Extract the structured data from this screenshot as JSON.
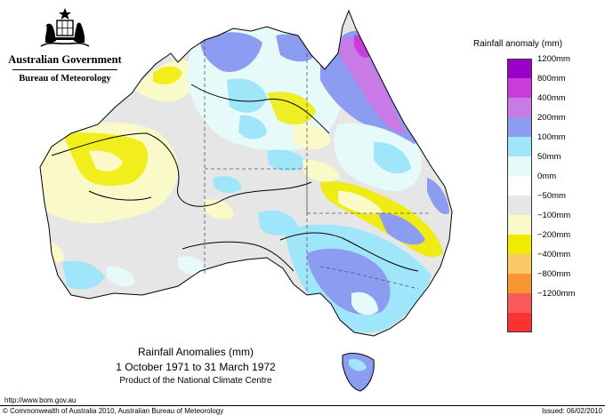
{
  "header": {
    "gov_name": "Australian Government",
    "bureau_name": "Bureau of Meteorology",
    "logo_icon": "coat-of-arms-icon"
  },
  "legend": {
    "title": "Rainfall anomaly (mm)",
    "items": [
      {
        "label": "1200mm",
        "color": "#9b00c8"
      },
      {
        "label": "800mm",
        "color": "#c83cdc"
      },
      {
        "label": "400mm",
        "color": "#c87ae6"
      },
      {
        "label": "200mm",
        "color": "#8c9cf0"
      },
      {
        "label": "100mm",
        "color": "#a0e6fa"
      },
      {
        "label": "50mm",
        "color": "#e6fafa"
      },
      {
        "label": "0mm",
        "color": "#ffffff"
      },
      {
        "label": "−50mm",
        "color": "#e6e6e6"
      },
      {
        "label": "−100mm",
        "color": "#fafac8"
      },
      {
        "label": "−200mm",
        "color": "#f0eb00"
      },
      {
        "label": "−400mm",
        "color": "#fac864"
      },
      {
        "label": "−800mm",
        "color": "#fa9632"
      },
      {
        "label": "−1200mm",
        "color": "#fa5a5a"
      },
      {
        "label": "",
        "color": "#fa3232"
      }
    ]
  },
  "caption": {
    "title": "Rainfall Anomalies (mm)",
    "period": "1 October 1971 to 31 March 1972",
    "product": "Product of the National Climate Centre"
  },
  "footer": {
    "url": "http://www.bom.gov.au",
    "copyright": "© Commonwealth of Australia 2010, Australian Bureau of Meteorology",
    "issued": "Issued: 06/02/2010"
  }
}
